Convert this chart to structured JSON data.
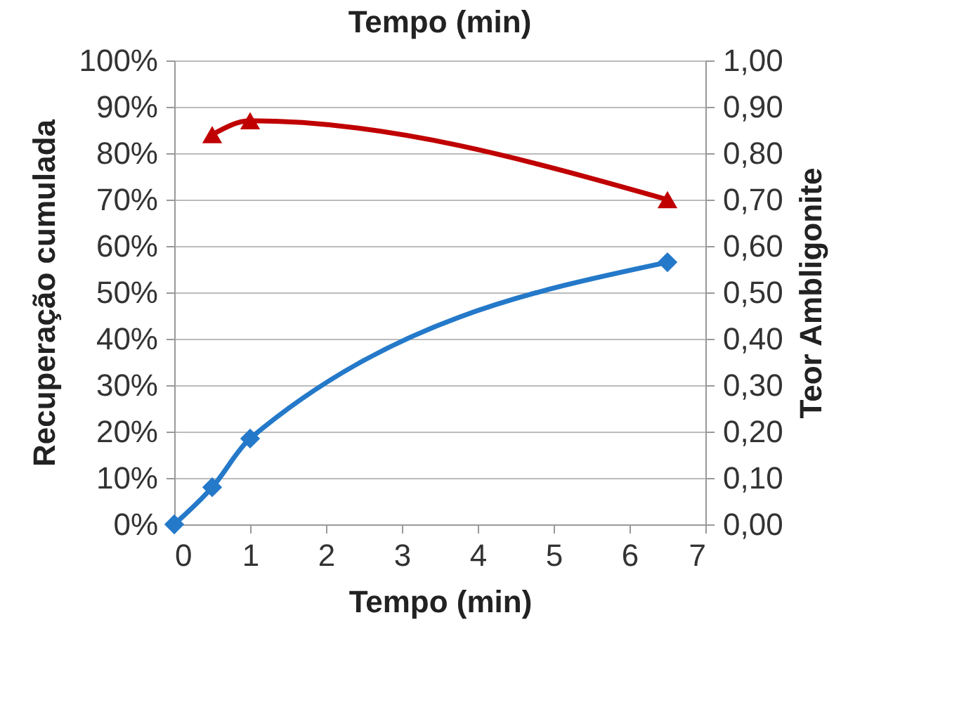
{
  "chart_data": {
    "type": "line",
    "title": "Tempo (min)",
    "xlabel": "Tempo (min)",
    "ylabel": "Recuperação cumulada",
    "y2label": "Teor Ambligonite",
    "series": [
      {
        "color": "#2479c9",
        "marker": "diamond",
        "values": [
          0,
          8,
          18.5,
          56.5
        ],
        "x": [
          0,
          0.5,
          1,
          6.5
        ]
      },
      {
        "color": "#c00000",
        "marker": "triangle",
        "axis": "y2",
        "values": [
          0.84,
          0.87,
          0.7
        ],
        "x": [
          0.5,
          1,
          6.5
        ]
      }
    ],
    "xlim": [
      0,
      7
    ],
    "xticks": [
      0,
      1,
      2,
      3,
      4,
      5,
      6,
      7
    ],
    "ylim": [
      0,
      100
    ],
    "yticks": [
      {
        "value": 0,
        "label": "0%"
      },
      {
        "value": 10,
        "label": "10%"
      },
      {
        "value": 20,
        "label": "20%"
      },
      {
        "value": 30,
        "label": "30%"
      },
      {
        "value": 40,
        "label": "40%"
      },
      {
        "value": 50,
        "label": "50%"
      },
      {
        "value": 60,
        "label": "60%"
      },
      {
        "value": 70,
        "label": "70%"
      },
      {
        "value": 80,
        "label": "80%"
      },
      {
        "value": 90,
        "label": "90%"
      },
      {
        "value": 100,
        "label": "100%"
      }
    ],
    "y2lim": [
      0,
      1
    ],
    "y2ticks": [
      {
        "value": 0,
        "label": "0,00"
      },
      {
        "value": 0.1,
        "label": "0,10"
      },
      {
        "value": 0.2,
        "label": "0,20"
      },
      {
        "value": 0.3,
        "label": "0,30"
      },
      {
        "value": 0.4,
        "label": "0,40"
      },
      {
        "value": 0.5,
        "label": "0,50"
      },
      {
        "value": 0.6,
        "label": "0,60"
      },
      {
        "value": 0.7,
        "label": "0,70"
      },
      {
        "value": 0.8,
        "label": "0,80"
      },
      {
        "value": 0.9,
        "label": "0,90"
      },
      {
        "value": 1,
        "label": "1,00"
      }
    ],
    "grid": "y"
  }
}
